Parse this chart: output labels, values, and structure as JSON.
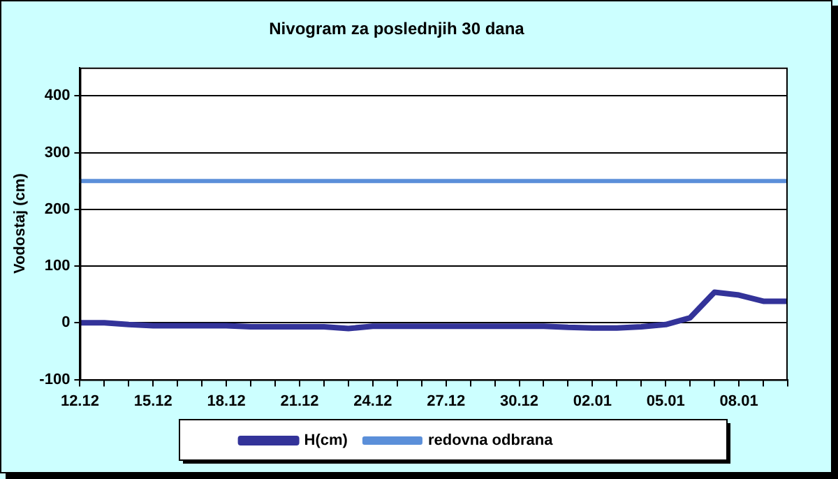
{
  "chart_data": {
    "type": "line",
    "title": "Nivogram za poslednjih 30 dana",
    "ylabel": "Vodostaj (cm)",
    "categories": [
      "12.12",
      null,
      null,
      "15.12",
      null,
      null,
      "18.12",
      null,
      null,
      "21.12",
      null,
      null,
      "24.12",
      null,
      null,
      "27.12",
      null,
      null,
      "30.12",
      null,
      null,
      "02.01",
      null,
      null,
      "05.01",
      null,
      null,
      "08.01",
      null,
      null
    ],
    "series": [
      {
        "name": "H(cm)",
        "color": "#333399",
        "values": [
          0,
          0,
          -3,
          -5,
          -5,
          -5,
          -5,
          -7,
          -7,
          -7,
          -7,
          -10,
          -6,
          -6,
          -6,
          -6,
          -6,
          -6,
          -6,
          -6,
          -8,
          -9,
          -9,
          -7,
          -3,
          9,
          54,
          49,
          38,
          38
        ]
      },
      {
        "name": "redovna odbrana",
        "color": "#5b8fd9",
        "values": [
          250,
          250,
          250,
          250,
          250,
          250,
          250,
          250,
          250,
          250,
          250,
          250,
          250,
          250,
          250,
          250,
          250,
          250,
          250,
          250,
          250,
          250,
          250,
          250,
          250,
          250,
          250,
          250,
          250,
          250
        ]
      }
    ],
    "ylim": [
      -100,
      450
    ],
    "yticks": [
      -100,
      0,
      100,
      200,
      300,
      400
    ],
    "grid": "y",
    "legend": "bottom"
  }
}
